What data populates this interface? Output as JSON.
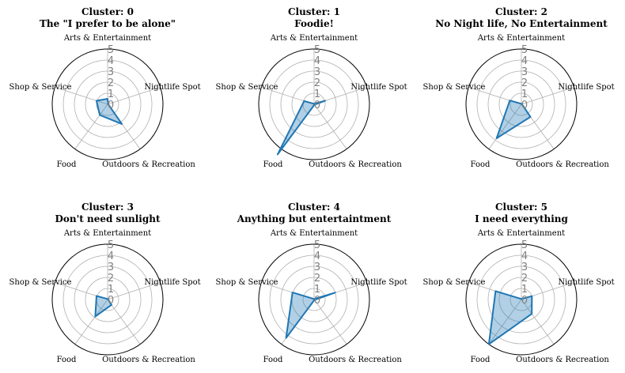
{
  "chart_data": {
    "type": "radar",
    "categories": [
      "Arts & Entertainment",
      "Nightlife Spot",
      "Outdoors & Recreation",
      "Food",
      "Shop & Service"
    ],
    "ticks": [
      "0",
      "1",
      "2",
      "3",
      "4",
      "5"
    ],
    "rlim": [
      0,
      5
    ],
    "grid": true,
    "legend": "none",
    "color": "#1f77b4",
    "charts": [
      {
        "title_line1": "Cluster: 0",
        "title_line2": "The \"I prefer to be alone\"",
        "values": [
          0.5,
          0.05,
          2.2,
          1.2,
          1.05
        ]
      },
      {
        "title_line1": "Cluster: 1",
        "title_line2": "Foodie!",
        "values": [
          0.05,
          1.05,
          0.05,
          5.6,
          0.95
        ]
      },
      {
        "title_line1": "Cluster: 2",
        "title_line2": "No Night life, No Entertainment",
        "values": [
          0.05,
          0.05,
          1.4,
          3.8,
          1.1
        ]
      },
      {
        "title_line1": "Cluster: 3",
        "title_line2": "Don't need sunlight",
        "values": [
          0.05,
          0.05,
          0.6,
          1.9,
          1.05
        ]
      },
      {
        "title_line1": "Cluster: 4",
        "title_line2": "Anything but entertaintment",
        "values": [
          0.05,
          2.0,
          0.05,
          4.3,
          2.05
        ]
      },
      {
        "title_line1": "Cluster: 5",
        "title_line2": "I need everything",
        "values": [
          0.05,
          1.0,
          1.6,
          5.0,
          2.45
        ]
      }
    ]
  }
}
